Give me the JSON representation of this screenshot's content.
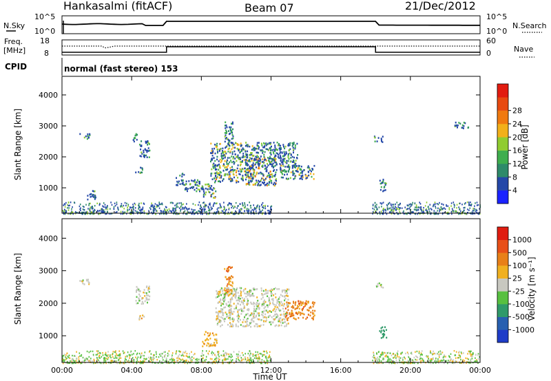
{
  "header": {
    "title": "Hankasalmi (fitACF)",
    "beam": "Beam 07",
    "date": "21/Dec/2012"
  },
  "top_panels": {
    "nsky_label": "N.Sky",
    "nsky_ticks": [
      "10^5",
      "10^0"
    ],
    "nsearch_label": "N.Search",
    "nsearch_ticks": [
      "10^5",
      "10^0"
    ],
    "freq_label_line1": "Freq.",
    "freq_label_line2": "[MHz]",
    "freq_ticks": [
      "18",
      "8"
    ],
    "nave_label": "Nave",
    "nave_ticks": [
      "60",
      "0"
    ],
    "cpid_label": "CPID",
    "cpid_value": "normal (fast stereo) 153"
  },
  "chart_data": [
    {
      "type": "heatmap",
      "name_panel": "power",
      "xlabel": "Time UT",
      "ylabel": "Slant Range [km]",
      "x_range_hours": [
        0,
        24
      ],
      "xticks": [
        "00:00",
        "04:00",
        "08:00",
        "12:00",
        "16:00",
        "20:00",
        "00:00"
      ],
      "ylim": [
        180,
        4600
      ],
      "yticks": [
        1000,
        2000,
        3000,
        4000
      ],
      "colorbar": {
        "label": "Power [dB]",
        "ticks": [
          "4",
          "8",
          "12",
          "16",
          "20",
          "24",
          "28"
        ],
        "colors": [
          "#1a22ff",
          "#2448a8",
          "#2e8a6a",
          "#3fae4e",
          "#90cc30",
          "#f2b01a",
          "#f07a10",
          "#e84a10",
          "#e21c10"
        ]
      },
      "echo_regions": [
        {
          "t": [
            1.0,
            1.6
          ],
          "r": [
            2600,
            2780
          ],
          "level": 0.25
        },
        {
          "t": [
            1.4,
            1.9
          ],
          "r": [
            650,
            950
          ],
          "level": 0.3
        },
        {
          "t": [
            4.4,
            5.0
          ],
          "r": [
            2000,
            2550
          ],
          "level": 0.25
        },
        {
          "t": [
            4.0,
            4.3
          ],
          "r": [
            2500,
            2800
          ],
          "level": 0.2
        },
        {
          "t": [
            4.2,
            4.6
          ],
          "r": [
            1500,
            1700
          ],
          "level": 0.3
        },
        {
          "t": [
            6.5,
            7.0
          ],
          "r": [
            1100,
            1500
          ],
          "level": 0.2
        },
        {
          "t": [
            7.0,
            8.0
          ],
          "r": [
            900,
            1300
          ],
          "level": 0.3
        },
        {
          "t": [
            8.0,
            8.8
          ],
          "r": [
            700,
            1150
          ],
          "level": 0.35
        },
        {
          "t": [
            8.5,
            11.0
          ],
          "r": [
            1200,
            2500
          ],
          "level": 0.45
        },
        {
          "t": [
            9.3,
            9.8
          ],
          "r": [
            2300,
            3150
          ],
          "level": 0.25
        },
        {
          "t": [
            10.5,
            12.3
          ],
          "r": [
            1100,
            2000
          ],
          "level": 0.55
        },
        {
          "t": [
            11.0,
            13.5
          ],
          "r": [
            1700,
            2500
          ],
          "level": 0.3
        },
        {
          "t": [
            12.5,
            14.5
          ],
          "r": [
            1300,
            1750
          ],
          "level": 0.4
        },
        {
          "t": [
            18.2,
            18.6
          ],
          "r": [
            900,
            1300
          ],
          "level": 0.35
        },
        {
          "t": [
            17.9,
            18.4
          ],
          "r": [
            2500,
            2700
          ],
          "level": 0.25
        },
        {
          "t": [
            22.5,
            23.3
          ],
          "r": [
            2950,
            3150
          ],
          "level": 0.2
        }
      ],
      "ground_scatter_band": {
        "r": [
          180,
          560
        ],
        "t_active": [
          [
            0,
            12
          ],
          [
            17.8,
            24
          ]
        ]
      }
    },
    {
      "type": "heatmap",
      "name_panel": "velocity",
      "xlabel": "Time UT",
      "ylabel": "Slant Range [km]",
      "x_range_hours": [
        0,
        24
      ],
      "xticks": [
        "00:00",
        "04:00",
        "08:00",
        "12:00",
        "16:00",
        "20:00",
        "00:00"
      ],
      "ylim": [
        180,
        4600
      ],
      "yticks": [
        1000,
        2000,
        3000,
        4000
      ],
      "colorbar": {
        "label": "Velocity [m s⁻¹]",
        "ticks": [
          "1000",
          "500",
          "100",
          "25",
          "-25",
          "-100",
          "-500",
          "-1000"
        ],
        "colors": [
          "#1e3cc8",
          "#2860b0",
          "#309a6a",
          "#58c040",
          "#c8c8c0",
          "#f0b020",
          "#e88018",
          "#e85018",
          "#e01c10"
        ]
      },
      "echo_regions": [
        {
          "t": [
            1.0,
            1.6
          ],
          "r": [
            2600,
            2800
          ],
          "level": 4
        },
        {
          "t": [
            4.2,
            5.0
          ],
          "r": [
            2000,
            2550
          ],
          "level": 4
        },
        {
          "t": [
            4.4,
            4.7
          ],
          "r": [
            1500,
            1700
          ],
          "level": 5
        },
        {
          "t": [
            8.0,
            8.9
          ],
          "r": [
            700,
            1150
          ],
          "level": 5
        },
        {
          "t": [
            9.3,
            9.8
          ],
          "r": [
            2250,
            3150
          ],
          "level": 6
        },
        {
          "t": [
            8.8,
            13.0
          ],
          "r": [
            1300,
            2500
          ],
          "level": 4
        },
        {
          "t": [
            12.8,
            14.5
          ],
          "r": [
            1500,
            2100
          ],
          "level": 6
        },
        {
          "t": [
            18.2,
            18.6
          ],
          "r": [
            900,
            1300
          ],
          "level": 2
        },
        {
          "t": [
            18.0,
            18.4
          ],
          "r": [
            2500,
            2700
          ],
          "level": 4
        }
      ],
      "ground_scatter_band": {
        "r": [
          180,
          560
        ],
        "t_active": [
          [
            0,
            12
          ],
          [
            17.8,
            24
          ]
        ]
      }
    }
  ]
}
